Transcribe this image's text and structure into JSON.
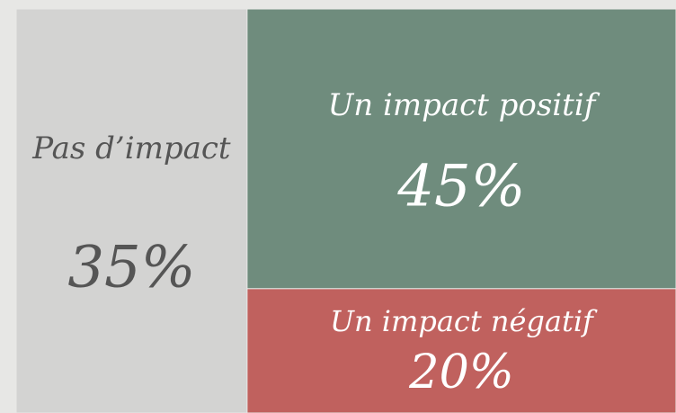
{
  "chart_data": {
    "type": "treemap",
    "categories": [
      "Pas d’impact",
      "Un impact positif",
      "Un impact négatif"
    ],
    "values": [
      35,
      45,
      20
    ],
    "value_labels": [
      "35%",
      "45%",
      "20%"
    ],
    "colors": [
      "#d3d3d2",
      "#6f8c7d",
      "#c0615e"
    ]
  }
}
